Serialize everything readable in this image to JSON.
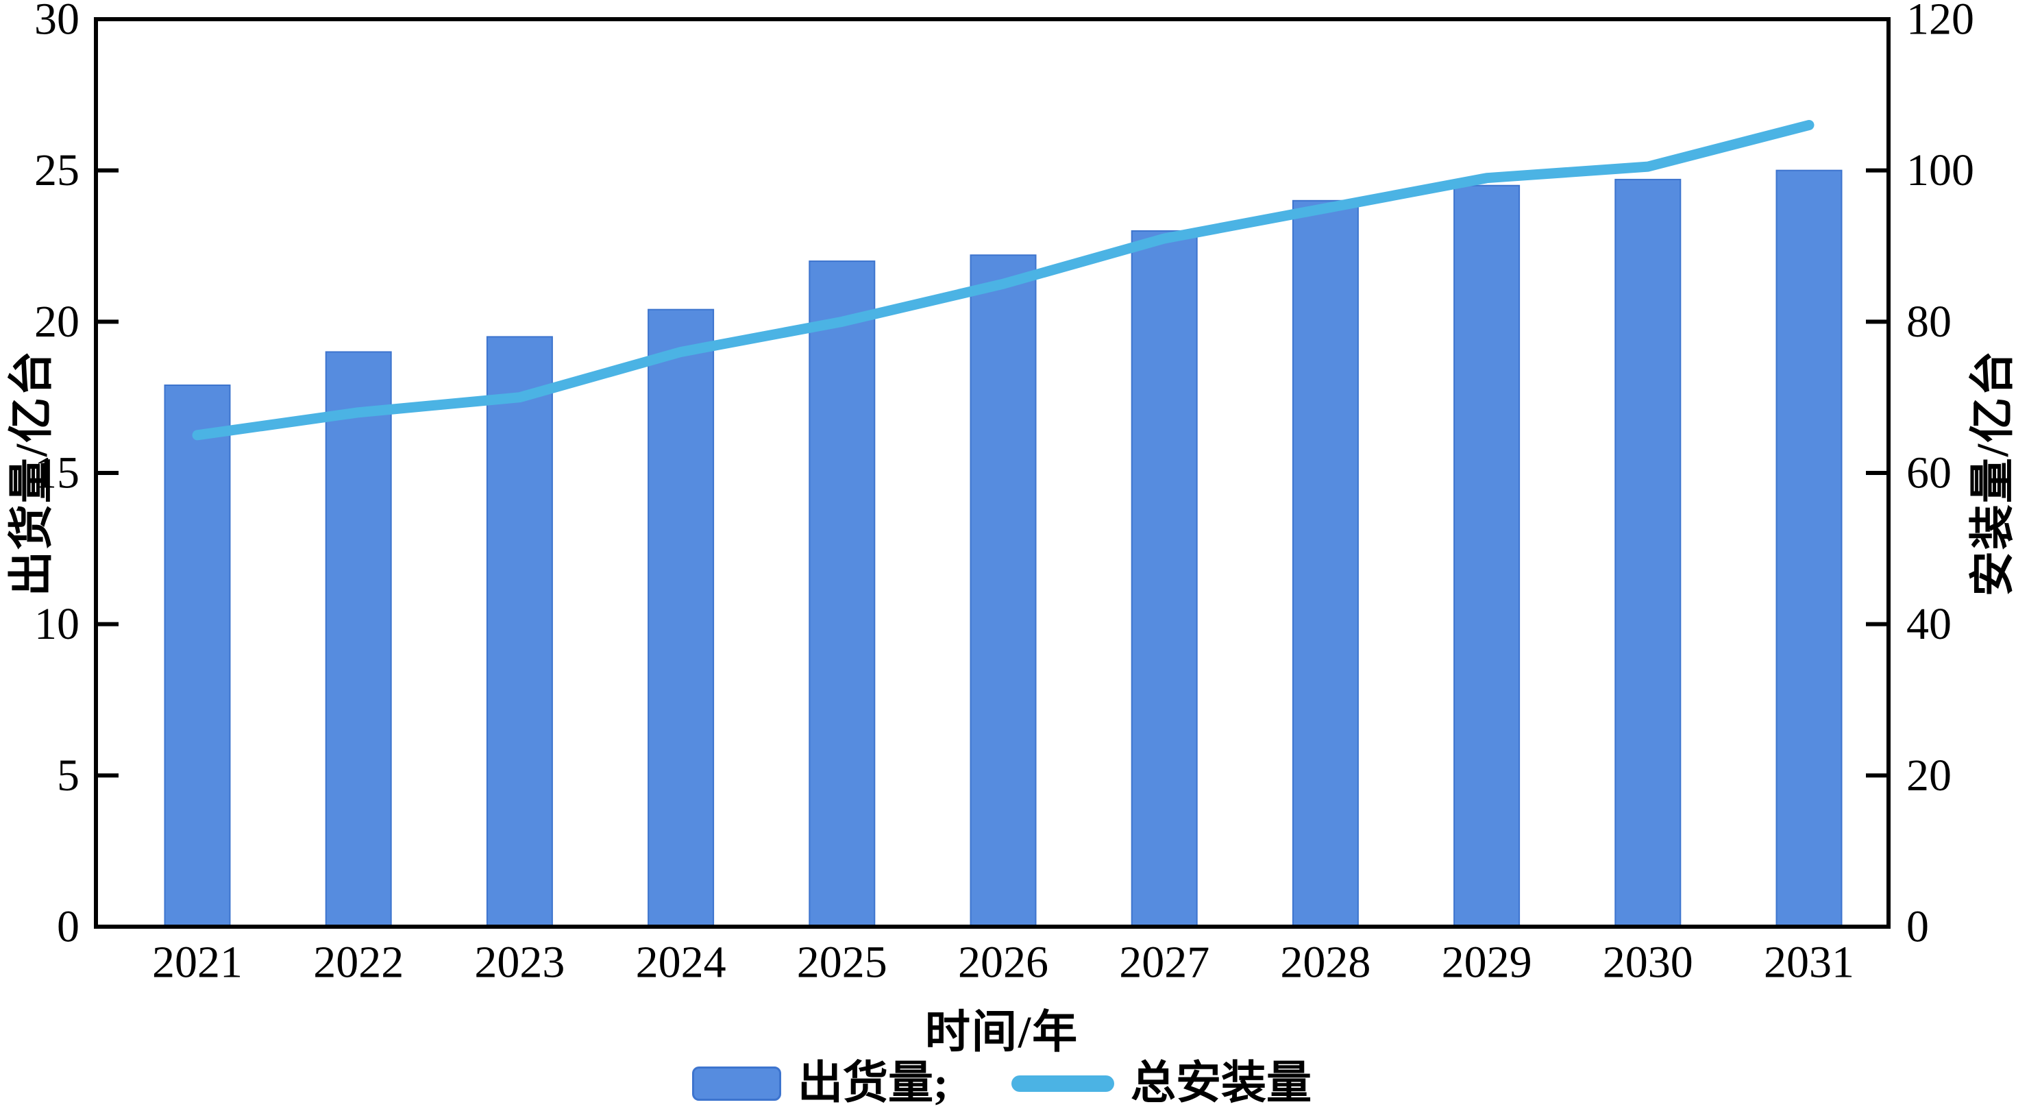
{
  "chart_data": {
    "type": "bar",
    "subtype": "bar+line-dual-axis",
    "title": "",
    "categories": [
      "2021",
      "2022",
      "2023",
      "2024",
      "2025",
      "2026",
      "2027",
      "2028",
      "2029",
      "2030",
      "2031"
    ],
    "series": [
      {
        "name": "出货量",
        "chart": "bar",
        "axis": "left",
        "unit": "亿台",
        "values": [
          17.9,
          19.0,
          19.5,
          20.4,
          22.0,
          22.2,
          23.0,
          24.0,
          24.5,
          24.7,
          25.0
        ],
        "color": "#568CDF"
      },
      {
        "name": "总安装量",
        "chart": "line",
        "axis": "right",
        "unit": "亿台",
        "values": [
          65,
          68,
          70,
          76,
          80,
          85,
          91,
          95,
          99,
          100.5,
          106
        ],
        "color": "#4BB3E4"
      }
    ],
    "x_axis": {
      "title": "时间/年"
    },
    "left_axis": {
      "title": "出货量/亿台",
      "min": 0,
      "max": 30,
      "ticks": [
        "0",
        "5",
        "10",
        "15",
        "20",
        "25",
        "30"
      ]
    },
    "right_axis": {
      "title": "安装量/亿台",
      "min": 0,
      "max": 120,
      "ticks": [
        "0",
        "20",
        "40",
        "60",
        "80",
        "100",
        "120"
      ]
    },
    "legend": {
      "position": "bottom-center",
      "items": [
        {
          "label": "出货量;",
          "marker": "rect"
        },
        {
          "label": "总安装量",
          "marker": "line"
        }
      ]
    },
    "grid": false
  },
  "colors": {
    "bar_fill": "#568CDF",
    "bar_border": "#3D74CE",
    "line": "#4BB3E4",
    "axis": "#000000",
    "text": "#000000",
    "background": "#FFFFFF"
  }
}
